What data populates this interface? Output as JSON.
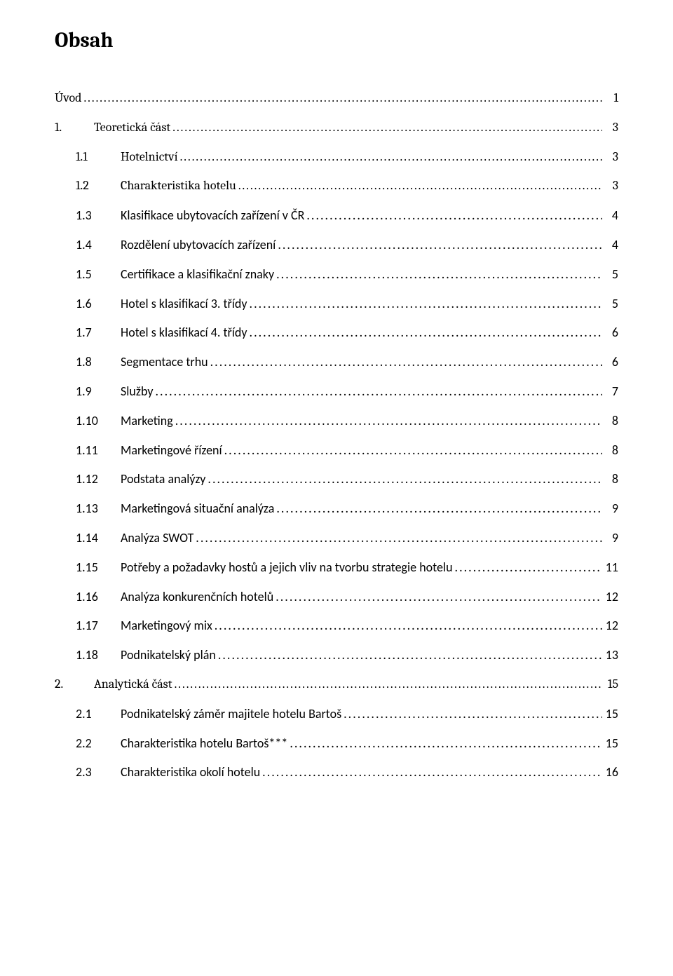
{
  "title": "Obsah",
  "entries": [
    {
      "indent": 0,
      "num": "",
      "label": "Úvod",
      "page": "1",
      "font": "serif"
    },
    {
      "indent": 1,
      "num": "1.",
      "label": "Teoretická část",
      "page": "3",
      "font": "serif"
    },
    {
      "indent": 2,
      "num": "1.1",
      "label": "Hotelnictví",
      "page": "3",
      "font": "serif"
    },
    {
      "indent": 2,
      "num": "1.2",
      "label": "Charakteristika hotelu",
      "page": "3",
      "font": "serif"
    },
    {
      "indent": 2,
      "num": "1.3",
      "label": "Klasifikace ubytovacích zařízení v ČR",
      "page": "4",
      "font": "sans"
    },
    {
      "indent": 2,
      "num": "1.4",
      "label": "Rozdělení ubytovacích zařízení",
      "page": "4",
      "font": "sans"
    },
    {
      "indent": 2,
      "num": "1.5",
      "label": "Certifikace a klasifikační znaky",
      "page": "5",
      "font": "sans"
    },
    {
      "indent": 2,
      "num": "1.6",
      "label": "Hotel s klasifikací 3. třídy",
      "page": "5",
      "font": "sans"
    },
    {
      "indent": 2,
      "num": "1.7",
      "label": "Hotel s klasifikací 4. třídy",
      "page": "6",
      "font": "sans"
    },
    {
      "indent": 2,
      "num": "1.8",
      "label": "Segmentace trhu",
      "page": "6",
      "font": "sans"
    },
    {
      "indent": 2,
      "num": "1.9",
      "label": "Služby",
      "page": "7",
      "font": "sans"
    },
    {
      "indent": 2,
      "num": "1.10",
      "label": "Marketing",
      "page": "8",
      "font": "sans"
    },
    {
      "indent": 2,
      "num": "1.11",
      "label": "Marketingové řízení",
      "page": "8",
      "font": "sans"
    },
    {
      "indent": 2,
      "num": "1.12",
      "label": "Podstata analýzy",
      "page": "8",
      "font": "sans"
    },
    {
      "indent": 2,
      "num": "1.13",
      "label": "Marketingová situační analýza",
      "page": "9",
      "font": "sans"
    },
    {
      "indent": 2,
      "num": "1.14",
      "label": "Analýza SWOT",
      "page": "9",
      "font": "sans"
    },
    {
      "indent": 2,
      "num": "1.15",
      "label": "Potřeby a požadavky hostů a jejich vliv na tvorbu strategie hotelu",
      "page": "11",
      "font": "sans"
    },
    {
      "indent": 2,
      "num": "1.16",
      "label": "Analýza konkurenčních hotelů",
      "page": "12",
      "font": "sans"
    },
    {
      "indent": 2,
      "num": "1.17",
      "label": "Marketingový mix",
      "page": "12",
      "font": "sans"
    },
    {
      "indent": 2,
      "num": "1.18",
      "label": "Podnikatelský plán",
      "page": "13",
      "font": "sans"
    },
    {
      "indent": 1,
      "num": "2.",
      "label": "Analytická část",
      "page": "15",
      "font": "serif"
    },
    {
      "indent": 2,
      "num": "2.1",
      "label": "Podnikatelský záměr majitele hotelu Bartoš",
      "page": "15",
      "font": "sans"
    },
    {
      "indent": 2,
      "num": "2.2",
      "label": "Charakteristika hotelu Bartoš***",
      "page": "15",
      "font": "sans"
    },
    {
      "indent": 2,
      "num": "2.3",
      "label": "Charakteristika okolí hotelu",
      "page": "16",
      "font": "sans"
    }
  ]
}
